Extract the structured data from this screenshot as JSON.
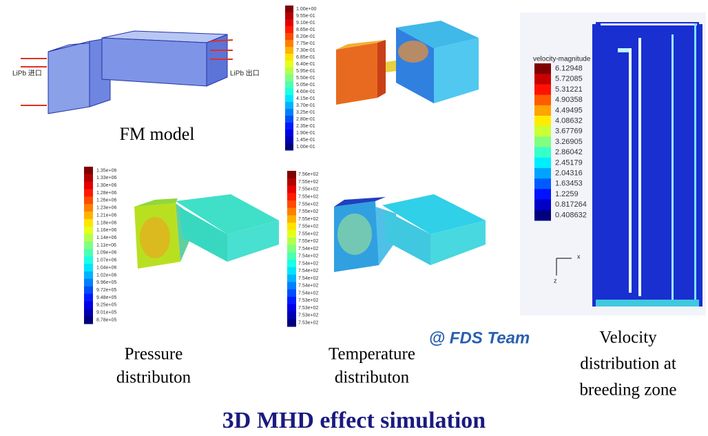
{
  "fm_model": {
    "inlet_label": "LiPb 进口",
    "outlet_label": "LiPb 出口",
    "caption": "FM model"
  },
  "top_contour": {
    "colorbar_labels": [
      "1.00e+00",
      "9.55e-01",
      "9.10e-01",
      "8.65e-01",
      "8.20e-01",
      "7.75e-01",
      "7.30e-01",
      "6.85e-01",
      "6.40e-01",
      "5.95e-01",
      "5.50e-01",
      "5.05e-01",
      "4.60e-01",
      "4.15e-01",
      "3.70e-01",
      "3.25e-01",
      "2.80e-01",
      "2.35e-01",
      "1.90e-01",
      "1.45e-01",
      "1.00e-01"
    ]
  },
  "pressure": {
    "colorbar_labels": [
      "1.35e+06",
      "1.33e+06",
      "1.30e+06",
      "1.28e+06",
      "1.26e+06",
      "1.23e+06",
      "1.21e+06",
      "1.18e+06",
      "1.16e+06",
      "1.14e+06",
      "1.11e+06",
      "1.09e+06",
      "1.07e+06",
      "1.04e+06",
      "1.02e+06",
      "9.96e+05",
      "9.72e+05",
      "9.48e+05",
      "9.25e+05",
      "9.01e+05",
      "8.78e+05"
    ],
    "caption": [
      "Pressure",
      "distributon"
    ]
  },
  "temperature": {
    "colorbar_labels": [
      "7.56e+02",
      "7.55e+02",
      "7.55e+02",
      "7.55e+02",
      "7.55e+02",
      "7.55e+02",
      "7.55e+02",
      "7.55e+02",
      "7.55e+02",
      "7.55e+02",
      "7.54e+02",
      "7.54e+02",
      "7.54e+02",
      "7.54e+02",
      "7.54e+02",
      "7.54e+02",
      "7.54e+02",
      "7.53e+02",
      "7.53e+02",
      "7.53e+02",
      "7.53e+02"
    ],
    "caption": [
      "Temperature",
      "distributon"
    ]
  },
  "velocity": {
    "colorbar_title": "velocity-magnitude",
    "colorbar_labels": [
      "6.12948",
      "5.72085",
      "5.31221",
      "4.90358",
      "4.49495",
      "4.08632",
      "3.67769",
      "3.26905",
      "2.86042",
      "2.45179",
      "2.04316",
      "1.63453",
      "1.2259",
      "0.817264",
      "0.408632"
    ],
    "axis_labels": [
      "x",
      "z"
    ],
    "caption": [
      "Velocity",
      "distribution at",
      "breeding zone"
    ]
  },
  "credit": "@ FDS Team",
  "title": "3D MHD effect simulation"
}
